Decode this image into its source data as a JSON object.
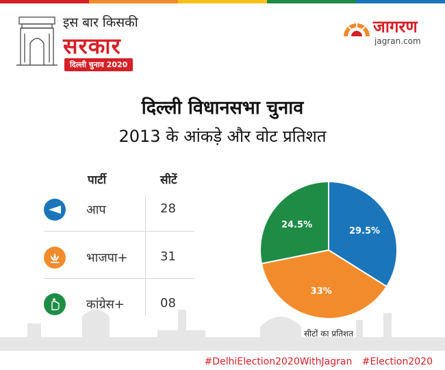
{
  "header": {
    "brand_line1": "इस बार किसकी",
    "brand_line2": "सरकार",
    "brand_pill": "दिल्ली चुनाव 2020",
    "logo_text": "जागरण",
    "logo_url": "jagran.com"
  },
  "title": {
    "line1": "दिल्ली विधानसभा चुनाव",
    "line2": "2013 के आंकड़े और वोट प्रतिशत"
  },
  "table": {
    "headers": {
      "party": "पार्टी",
      "seats": "सीटें"
    },
    "rows": [
      {
        "party": "आप",
        "seats": "28",
        "icon": "broom-icon",
        "color": "#1a75bb"
      },
      {
        "party": "भाजपा+",
        "seats": "31",
        "icon": "lotus-icon",
        "color": "#f28b2c"
      },
      {
        "party": "कांग्रेस+",
        "seats": "08",
        "icon": "hand-icon",
        "color": "#1e8c45"
      }
    ]
  },
  "chart_data": {
    "type": "pie",
    "title": "",
    "caption": "सीटों का प्रतिशत",
    "slices": [
      {
        "label": "29.5%",
        "value": 29.5,
        "color": "#1a75bb"
      },
      {
        "label": "33%",
        "value": 33,
        "color": "#f28b2c"
      },
      {
        "label": "24.5%",
        "value": 24.5,
        "color": "#1e8c45"
      }
    ]
  },
  "footer": {
    "tag1": "#DelhiElection2020WithJagran",
    "tag2": "#Election2020"
  },
  "colors": {
    "accent": "#d62027",
    "aap": "#1a75bb",
    "bjp": "#f28b2c",
    "congress": "#1e8c45"
  }
}
